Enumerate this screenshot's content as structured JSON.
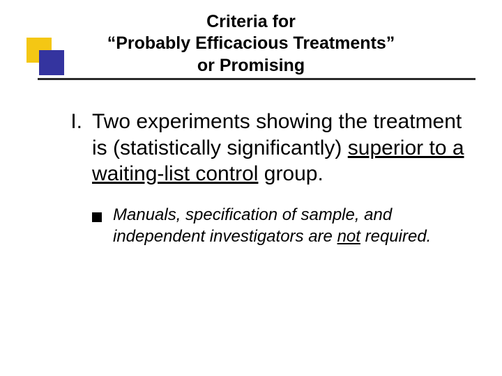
{
  "colors": {
    "background": "#ffffff",
    "text": "#000000",
    "rule": "#2a2a2a",
    "deco_yellow": "#f4c714",
    "deco_blue": "#34349f",
    "bullet_square": "#000000"
  },
  "typography": {
    "family": "Verdana",
    "title_fontsize_pt": 20,
    "title_weight": "bold",
    "body_fontsize_pt": 22,
    "sub_fontsize_pt": 18,
    "sub_style": "italic"
  },
  "title": {
    "line1": "Criteria for",
    "line2": "“Probably Efficacious Treatments”",
    "line3": "or Promising"
  },
  "list": {
    "item1": {
      "marker": "I.",
      "pre": "Two experiments showing the treatment is (statistically significantly) ",
      "underlined": "superior to a waiting-list control",
      "post": " group."
    },
    "item2": {
      "pre": "Manuals, specification of sample, and independent investigators are ",
      "underlined": "not",
      "post": " required."
    }
  }
}
